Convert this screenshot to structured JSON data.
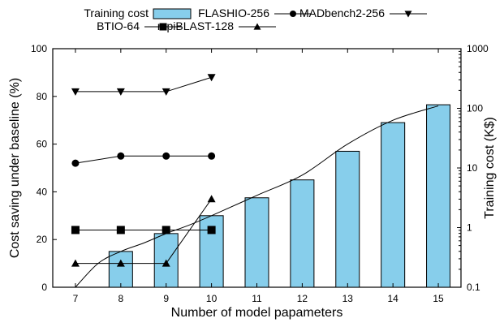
{
  "chart_data": {
    "type": "bar+line",
    "xlabel": "Number of model papameters",
    "ylabel_left": "Cost saving under baseline (%)",
    "ylabel_right": "Training cost (K$)",
    "x_ticks": [
      "7",
      "8",
      "9",
      "10",
      "11",
      "12",
      "13",
      "14",
      "15"
    ],
    "ylim_left": [
      0,
      100
    ],
    "yticks_left": [
      "0",
      "20",
      "40",
      "60",
      "80",
      "100"
    ],
    "ylim_right_log": [
      0.1,
      1000
    ],
    "yticks_right": [
      "0.1",
      "1",
      "10",
      "100",
      "1000"
    ],
    "bars": {
      "name": "Training cost",
      "x": [
        8,
        9,
        10,
        11,
        12,
        13,
        14,
        15
      ],
      "values_left_axis": [
        15,
        22.5,
        30,
        37.5,
        45,
        57,
        69,
        76.5
      ],
      "color": "#87ceeb"
    },
    "trend_curve_left_axis": {
      "x": [
        7,
        7.5,
        8,
        8.5,
        9,
        9.5,
        10,
        11,
        12,
        13,
        14,
        15
      ],
      "y": [
        0,
        10,
        15,
        18.5,
        22.5,
        26,
        30,
        38.5,
        47,
        60,
        70,
        76
      ]
    },
    "series": [
      {
        "name": "FLASHIO-256",
        "marker": "circle",
        "x": [
          7,
          8,
          9,
          10
        ],
        "values": [
          52,
          55,
          55,
          55
        ]
      },
      {
        "name": "MADbench2-256",
        "marker": "triangle-down",
        "x": [
          7,
          8,
          9,
          10
        ],
        "values": [
          82,
          82,
          82,
          88
        ]
      },
      {
        "name": "BTIO-64",
        "marker": "square",
        "x": [
          7,
          8,
          9,
          10
        ],
        "values": [
          24,
          24,
          24,
          24
        ]
      },
      {
        "name": "mpiBLAST-128",
        "marker": "triangle-up",
        "x": [
          7,
          8,
          9,
          10
        ],
        "values": [
          10,
          10,
          10,
          37
        ]
      }
    ],
    "legend": [
      {
        "label": "Training cost",
        "kind": "bar"
      },
      {
        "label": "FLASHIO-256",
        "kind": "circle"
      },
      {
        "label": "MADbench2-256",
        "kind": "triangle-down"
      },
      {
        "label": "BTIO-64",
        "kind": "square"
      },
      {
        "label": "mpiBLAST-128",
        "kind": "triangle-up"
      }
    ],
    "legend_position": "top"
  }
}
